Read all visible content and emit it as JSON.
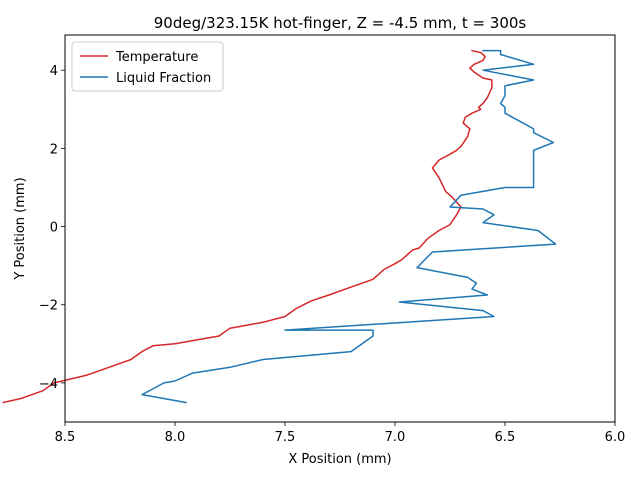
{
  "chart_data": {
    "type": "line",
    "title": "90deg/323.15K hot-finger, Z = -4.5 mm, t = 300s",
    "xlabel": "X Position (mm)",
    "ylabel": "Y Position (mm)",
    "xlim": [
      8.5,
      6.0
    ],
    "ylim": [
      -5.0,
      4.9
    ],
    "x_inverted": true,
    "xticks": [
      8.5,
      8.0,
      7.5,
      7.0,
      6.5,
      6.0
    ],
    "xtick_labels": [
      "8.5",
      "8.0",
      "7.5",
      "7.0",
      "6.5",
      "6.0"
    ],
    "yticks": [
      -4,
      -2,
      0,
      2,
      4
    ],
    "ytick_labels": [
      "−4",
      "−2",
      "0",
      "2",
      "4"
    ],
    "grid": false,
    "legend_position": "top-left",
    "series": [
      {
        "name": "Temperature",
        "color": "#d62728",
        "x": [
          8.78,
          8.7,
          8.65,
          8.6,
          8.55,
          8.4,
          8.3,
          8.2,
          8.15,
          8.1,
          8.0,
          7.8,
          7.75,
          7.6,
          7.5,
          7.45,
          7.38,
          7.3,
          7.2,
          7.1,
          7.05,
          7.0,
          6.97,
          6.92,
          6.89,
          6.85,
          6.8,
          6.75,
          6.72,
          6.7,
          6.74,
          6.77,
          6.8,
          6.83,
          6.8,
          6.75,
          6.72,
          6.7,
          6.67,
          6.66,
          6.69,
          6.68,
          6.65,
          6.61,
          6.62,
          6.6,
          6.58,
          6.56,
          6.56,
          6.6,
          6.64,
          6.66,
          6.64,
          6.6,
          6.59,
          6.61,
          6.65
        ],
        "y": [
          -4.5,
          -4.4,
          -4.3,
          -4.2,
          -4.0,
          -3.8,
          -3.6,
          -3.4,
          -3.2,
          -3.05,
          -3.0,
          -2.8,
          -2.6,
          -2.45,
          -2.3,
          -2.1,
          -1.9,
          -1.75,
          -1.55,
          -1.35,
          -1.1,
          -0.95,
          -0.85,
          -0.6,
          -0.55,
          -0.3,
          -0.1,
          0.05,
          0.3,
          0.5,
          0.75,
          0.9,
          1.25,
          1.5,
          1.7,
          1.85,
          1.95,
          2.05,
          2.3,
          2.5,
          2.65,
          2.8,
          2.9,
          3.0,
          3.05,
          3.15,
          3.3,
          3.55,
          3.75,
          3.8,
          3.95,
          4.05,
          4.15,
          4.25,
          4.35,
          4.45,
          4.5
        ]
      },
      {
        "name": "Liquid Fraction",
        "color": "#1f77b4",
        "x": [
          7.95,
          8.15,
          8.05,
          8.0,
          7.92,
          7.75,
          7.6,
          7.2,
          7.1,
          7.1,
          7.5,
          6.55,
          6.6,
          6.98,
          6.58,
          6.65,
          6.63,
          6.67,
          6.9,
          6.83,
          6.27,
          6.35,
          6.6,
          6.55,
          6.6,
          6.75,
          6.7,
          6.5,
          6.5,
          6.37,
          6.37,
          6.28,
          6.37,
          6.37,
          6.5,
          6.5,
          6.52,
          6.5,
          6.5,
          6.37,
          6.6,
          6.37,
          6.52,
          6.52,
          6.6
        ],
        "y": [
          -4.5,
          -4.3,
          -4.0,
          -3.95,
          -3.75,
          -3.6,
          -3.4,
          -3.2,
          -2.8,
          -2.65,
          -2.65,
          -2.3,
          -2.15,
          -1.93,
          -1.75,
          -1.6,
          -1.45,
          -1.3,
          -1.05,
          -0.65,
          -0.45,
          -0.1,
          0.1,
          0.3,
          0.45,
          0.5,
          0.8,
          1.0,
          1.0,
          1.0,
          1.95,
          2.15,
          2.4,
          2.5,
          2.9,
          3.05,
          3.15,
          3.35,
          3.6,
          3.75,
          4.0,
          4.15,
          4.4,
          4.5,
          4.5
        ]
      }
    ]
  }
}
